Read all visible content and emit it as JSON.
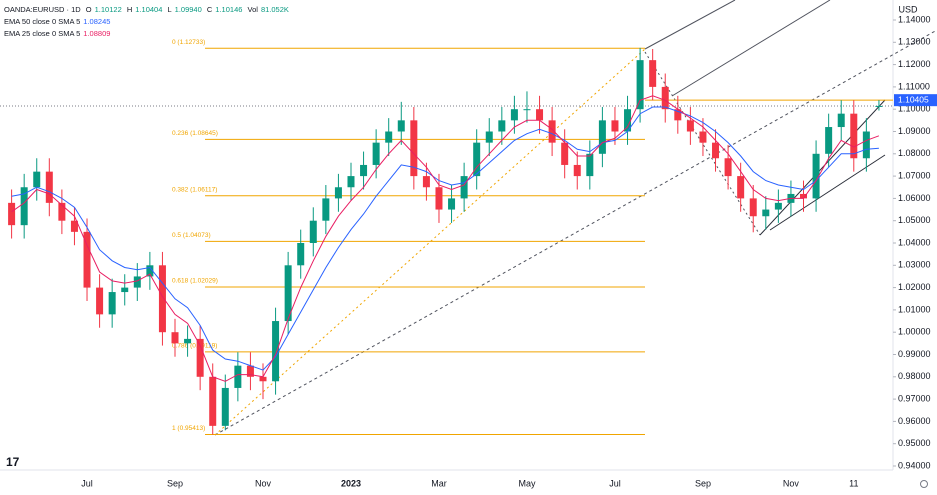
{
  "currency": "USD",
  "header": {
    "symbol": "OANDA:EURUSD · 1D",
    "ohlc": [
      {
        "key": "O",
        "text": "1.10122"
      },
      {
        "key": "H",
        "text": "1.10404"
      },
      {
        "key": "L",
        "text": "1.09940"
      },
      {
        "key": "C",
        "text": "1.10146"
      },
      {
        "key": "Vol",
        "text": "81.052K"
      }
    ]
  },
  "chart_data": {
    "type": "candlestick",
    "categories": [
      null,
      null,
      null,
      null,
      null,
      null,
      "Jul",
      null,
      null,
      null,
      null,
      null,
      null,
      "Sep",
      null,
      null,
      null,
      null,
      null,
      null,
      "Nov",
      null,
      null,
      null,
      null,
      null,
      null,
      "2023",
      null,
      null,
      null,
      null,
      null,
      null,
      "Mar",
      null,
      null,
      null,
      null,
      null,
      null,
      "May",
      null,
      null,
      null,
      null,
      null,
      null,
      "Jul",
      null,
      null,
      null,
      null,
      null,
      null,
      "Sep",
      null,
      null,
      null,
      null,
      null,
      null,
      "Nov",
      null,
      null,
      null,
      null,
      "11",
      null,
      null
    ],
    "open": [
      1.058,
      1.048,
      1.065,
      1.072,
      1.058,
      1.05,
      1.045,
      1.02,
      1.008,
      1.018,
      1.02,
      1.025,
      1.03,
      1.0,
      0.995,
      0.997,
      0.98,
      0.958,
      0.975,
      0.985,
      0.98,
      0.978,
      1.005,
      1.03,
      1.04,
      1.05,
      1.06,
      1.065,
      1.07,
      1.075,
      1.085,
      1.09,
      1.095,
      1.07,
      1.065,
      1.055,
      1.06,
      1.07,
      1.085,
      1.09,
      1.095,
      1.1,
      1.1,
      1.095,
      1.085,
      1.075,
      1.07,
      1.08,
      1.095,
      1.09,
      1.1,
      1.122,
      1.11,
      1.1,
      1.095,
      1.09,
      1.085,
      1.078,
      1.07,
      1.06,
      1.052,
      1.055,
      1.058,
      1.062,
      1.06,
      1.08,
      1.092,
      1.098,
      1.078,
      1.10122
    ],
    "high": [
      1.064,
      1.071,
      1.078,
      1.078,
      1.064,
      1.056,
      1.051,
      1.026,
      1.024,
      1.026,
      1.031,
      1.036,
      1.036,
      1.006,
      1.003,
      1.003,
      0.986,
      0.981,
      0.991,
      0.991,
      0.986,
      1.011,
      1.036,
      1.046,
      1.056,
      1.066,
      1.071,
      1.076,
      1.081,
      1.091,
      1.096,
      1.1033,
      1.101,
      1.076,
      1.071,
      1.066,
      1.076,
      1.091,
      1.096,
      1.101,
      1.106,
      1.108,
      1.106,
      1.101,
      1.091,
      1.081,
      1.086,
      1.101,
      1.101,
      1.106,
      1.1275,
      1.127,
      1.116,
      1.106,
      1.101,
      1.096,
      1.091,
      1.084,
      1.076,
      1.066,
      1.061,
      1.064,
      1.068,
      1.068,
      1.086,
      1.098,
      1.104,
      1.104,
      1.096,
      1.10404
    ],
    "low": [
      1.042,
      1.042,
      1.059,
      1.052,
      1.044,
      1.039,
      1.014,
      1.002,
      1.002,
      1.012,
      1.014,
      1.019,
      0.994,
      0.989,
      0.989,
      0.974,
      0.9541,
      0.956,
      0.969,
      0.974,
      0.97,
      0.972,
      0.999,
      1.024,
      1.034,
      1.044,
      1.054,
      1.059,
      1.064,
      1.069,
      1.079,
      1.084,
      1.064,
      1.059,
      1.049,
      1.049,
      1.054,
      1.064,
      1.079,
      1.084,
      1.089,
      1.094,
      1.089,
      1.079,
      1.069,
      1.064,
      1.064,
      1.074,
      1.084,
      1.084,
      1.094,
      1.104,
      1.094,
      1.089,
      1.084,
      1.079,
      1.072,
      1.064,
      1.054,
      1.0448,
      1.046,
      1.049,
      1.052,
      1.054,
      1.054,
      1.074,
      1.086,
      1.072,
      1.072,
      1.0994
    ],
    "close": [
      1.048,
      1.065,
      1.072,
      1.058,
      1.05,
      1.045,
      1.02,
      1.008,
      1.018,
      1.02,
      1.025,
      1.03,
      1.0,
      0.995,
      0.997,
      0.98,
      0.958,
      0.975,
      0.985,
      0.98,
      0.978,
      1.005,
      1.03,
      1.04,
      1.05,
      1.06,
      1.065,
      1.07,
      1.075,
      1.085,
      1.09,
      1.095,
      1.07,
      1.065,
      1.055,
      1.06,
      1.07,
      1.085,
      1.09,
      1.095,
      1.1,
      1.1,
      1.095,
      1.085,
      1.075,
      1.07,
      1.08,
      1.095,
      1.09,
      1.1,
      1.122,
      1.11,
      1.1,
      1.095,
      1.09,
      1.085,
      1.078,
      1.07,
      1.06,
      1.052,
      1.055,
      1.058,
      1.062,
      1.06,
      1.08,
      1.092,
      1.098,
      1.078,
      1.09,
      1.10146
    ],
    "up_color": "#089981",
    "down_color": "#f23645",
    "series": [
      {
        "name": "EMA 50 close 0 SMA 5",
        "color": "#2962ff",
        "values": [
          1.061,
          1.062,
          1.065,
          1.063,
          1.06,
          1.056,
          1.047,
          1.037,
          1.032,
          1.029,
          1.028,
          1.029,
          1.022,
          1.015,
          1.011,
          1.003,
          0.992,
          0.988,
          0.987,
          0.985,
          0.983,
          0.989,
          0.999,
          1.009,
          1.019,
          1.029,
          1.038,
          1.046,
          1.053,
          1.061,
          1.068,
          1.075,
          1.074,
          1.072,
          1.068,
          1.066,
          1.067,
          1.071,
          1.076,
          1.081,
          1.086,
          1.089,
          1.091,
          1.089,
          1.086,
          1.082,
          1.081,
          1.085,
          1.086,
          1.09,
          1.098,
          1.101,
          1.101,
          1.099,
          1.097,
          1.094,
          1.09,
          1.085,
          1.079,
          1.072,
          1.068,
          1.066,
          1.065,
          1.064,
          1.068,
          1.074,
          1.08,
          1.08,
          1.082,
          1.08245
        ]
      },
      {
        "name": "EMA 25 close 0 SMA 5",
        "color": "#e91e63",
        "values": [
          1.054,
          1.058,
          1.064,
          1.062,
          1.057,
          1.052,
          1.039,
          1.027,
          1.023,
          1.022,
          1.023,
          1.026,
          1.016,
          1.008,
          1.004,
          0.994,
          0.98,
          0.978,
          0.981,
          0.981,
          0.98,
          0.99,
          1.006,
          1.02,
          1.032,
          1.043,
          1.052,
          1.059,
          1.065,
          1.073,
          1.08,
          1.086,
          1.08,
          1.074,
          1.066,
          1.064,
          1.066,
          1.074,
          1.08,
          1.086,
          1.092,
          1.095,
          1.095,
          1.091,
          1.085,
          1.079,
          1.079,
          1.085,
          1.087,
          1.092,
          1.104,
          1.106,
          1.104,
          1.1,
          1.096,
          1.092,
          1.086,
          1.08,
          1.072,
          1.064,
          1.06,
          1.059,
          1.06,
          1.06,
          1.068,
          1.078,
          1.086,
          1.083,
          1.086,
          1.08809
        ]
      }
    ],
    "fib_levels": [
      {
        "value": 1.12733,
        "label": "0 (1.12733)"
      },
      {
        "value": 1.08645,
        "label": "0.236 (1.08645)"
      },
      {
        "value": 1.06117,
        "label": "0.382 (1.06117)"
      },
      {
        "value": 1.04073,
        "label": "0.5 (1.04073)"
      },
      {
        "value": 1.02029,
        "label": "0.618 (1.02029)"
      },
      {
        "value": 0.99119,
        "label": "0.786 (0.99119)"
      },
      {
        "value": 0.95413,
        "label": "1 (0.95413)"
      }
    ],
    "fib_color": "#f0a500",
    "price_line": 1.10405,
    "ylim": [
      0.94,
      1.14
    ],
    "yticks": [
      {
        "value": 0.94,
        "label": "0.94000"
      },
      {
        "value": 0.95,
        "label": "0.95000"
      },
      {
        "value": 0.96,
        "label": "0.96000"
      },
      {
        "value": 0.97,
        "label": "0.97000"
      },
      {
        "value": 0.98,
        "label": "0.98000"
      },
      {
        "value": 0.99,
        "label": "0.99000"
      },
      {
        "value": 1.0,
        "label": "1.00000"
      },
      {
        "value": 1.01,
        "label": "1.01000"
      },
      {
        "value": 1.02,
        "label": "1.02000"
      },
      {
        "value": 1.03,
        "label": "1.03000"
      },
      {
        "value": 1.04,
        "label": "1.04000"
      },
      {
        "value": 1.05,
        "label": "1.05000"
      },
      {
        "value": 1.06,
        "label": "1.06000"
      },
      {
        "value": 1.07,
        "label": "1.07000"
      },
      {
        "value": 1.08,
        "label": "1.08000"
      },
      {
        "value": 1.09,
        "label": "1.09000"
      },
      {
        "value": 1.1,
        "label": "1.10000"
      },
      {
        "value": 1.11,
        "label": "1.11000"
      },
      {
        "value": 1.12,
        "label": "1.12000"
      },
      {
        "value": 1.13,
        "label": "1.13000"
      },
      {
        "value": 1.14,
        "label": "1.14000"
      }
    ],
    "grid": false
  }
}
